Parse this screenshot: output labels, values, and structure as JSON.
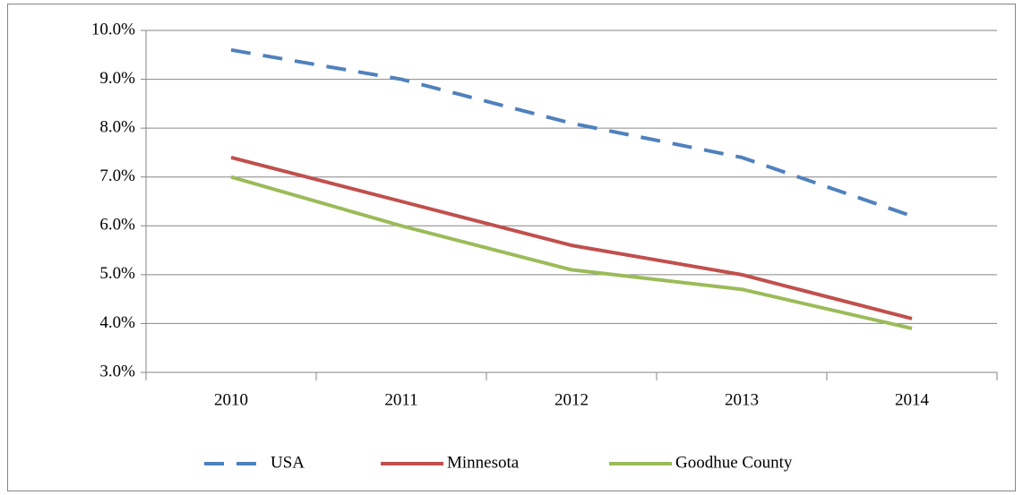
{
  "chart_data": {
    "type": "line",
    "categories": [
      "2010",
      "2011",
      "2012",
      "2013",
      "2014"
    ],
    "series": [
      {
        "name": "USA",
        "color": "#4f81bd",
        "dashed": true,
        "values": [
          9.6,
          9.0,
          8.1,
          7.4,
          6.2
        ]
      },
      {
        "name": "Minnesota",
        "color": "#c0504d",
        "dashed": false,
        "values": [
          7.4,
          6.5,
          5.6,
          5.0,
          4.1
        ]
      },
      {
        "name": "Goodhue County",
        "color": "#9bbb59",
        "dashed": false,
        "values": [
          7.0,
          6.0,
          5.1,
          4.7,
          3.9
        ]
      }
    ],
    "ylim": [
      3,
      10
    ],
    "yticks": [
      {
        "value": 3,
        "label": "3.0%"
      },
      {
        "value": 4,
        "label": "4.0%"
      },
      {
        "value": 5,
        "label": "5.0%"
      },
      {
        "value": 6,
        "label": "6.0%"
      },
      {
        "value": 7,
        "label": "7.0%"
      },
      {
        "value": 8,
        "label": "8.0%"
      },
      {
        "value": 9,
        "label": "9.0%"
      },
      {
        "value": 10,
        "label": "10.0%"
      }
    ],
    "grid": true,
    "legend": "bottom"
  }
}
